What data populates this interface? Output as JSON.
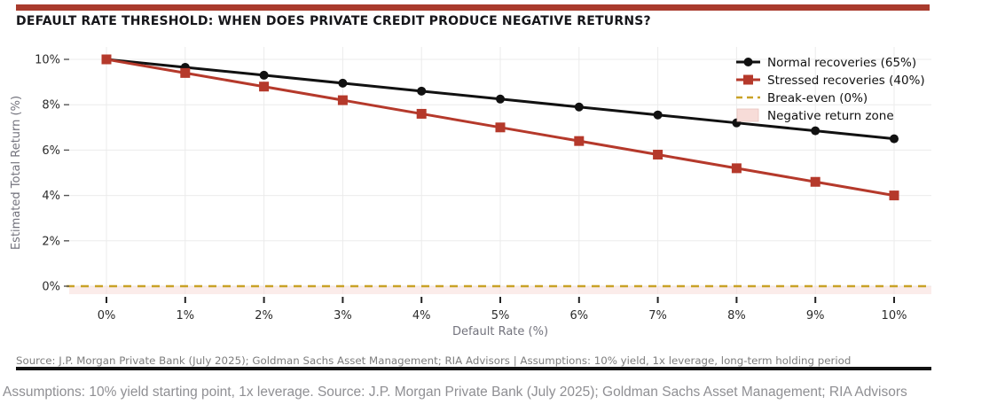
{
  "page": {
    "source_note": "Source: J.P. Morgan Private Bank (July 2025); Goldman Sachs Asset Management; RIA Advisors   |   Assumptions: 10% yield, 1x leverage, long-term holding period",
    "footer_caption": "Assumptions: 10% yield starting point, 1x leverage. Source: J.P. Morgan Private Bank (July 2025); Goldman Sachs Asset Management; RIA Advisors"
  },
  "colors": {
    "accent_bar": "#a93b2d",
    "normal_series": "#111111",
    "stressed_series": "#b5392b",
    "break_even": "#c9a227",
    "negative_zone_fill": "#f7dcd8",
    "gridline": "#ebebeb",
    "tick_label": "#2b2b2b",
    "axis_label": "#73737d"
  },
  "chart_data": {
    "type": "line",
    "title": "DEFAULT RATE THRESHOLD: WHEN DOES PRIVATE CREDIT PRODUCE NEGATIVE RETURNS?",
    "x": [
      0,
      1,
      2,
      3,
      4,
      5,
      6,
      7,
      8,
      9,
      10
    ],
    "x_tick_labels": [
      "0%",
      "1%",
      "2%",
      "3%",
      "4%",
      "5%",
      "6%",
      "7%",
      "8%",
      "9%",
      "10%"
    ],
    "xlabel": "Default Rate (%)",
    "ylabel": "Estimated Total Return (%)",
    "y_ticks": [
      0,
      2,
      4,
      6,
      8,
      10
    ],
    "y_tick_labels": [
      "0%",
      "2%",
      "4%",
      "6%",
      "8%",
      "10%"
    ],
    "ylim": [
      -0.35,
      10.55
    ],
    "grid": true,
    "legend_position": "upper right",
    "series": [
      {
        "name": "Normal recoveries (65%)",
        "color": "#111111",
        "marker": "circle",
        "values": [
          10.0,
          9.65,
          9.3,
          8.95,
          8.6,
          8.25,
          7.9,
          7.55,
          7.2,
          6.85,
          6.5
        ]
      },
      {
        "name": "Stressed recoveries (40%)",
        "color": "#b5392b",
        "marker": "square",
        "values": [
          10.0,
          9.4,
          8.8,
          8.2,
          7.6,
          7.0,
          6.4,
          5.8,
          5.2,
          4.6,
          4.0
        ]
      }
    ],
    "break_even": {
      "label": "Break-even (0%)",
      "value": 0,
      "color": "#c9a227",
      "style": "dashed"
    },
    "negative_zone": {
      "label": "Negative return zone",
      "color": "#f7dcd8",
      "below": 0
    }
  }
}
